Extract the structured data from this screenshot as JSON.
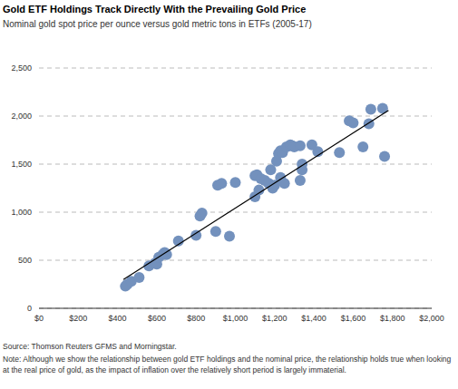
{
  "chart_data": {
    "type": "scatter",
    "title": "Gold ETF Holdings Track Directly With the Prevailing Gold Price",
    "subtitle": "Nominal gold spot price per ounce versus gold metric tons in ETFs (2005-17)",
    "source": "Source: Thomson Reuters GFMS and Morningstar.",
    "note": "Note: Although we show the relationship between gold ETF holdings and the nominal price, the relationship holds true when looking at the real price of gold, as the impact of inflation over the relatively short period is largely immaterial.",
    "x": [
      440,
      450,
      470,
      510,
      560,
      590,
      600,
      610,
      630,
      640,
      650,
      710,
      800,
      820,
      830,
      900,
      910,
      930,
      970,
      1000,
      1100,
      1100,
      1110,
      1120,
      1130,
      1150,
      1170,
      1180,
      1190,
      1200,
      1210,
      1220,
      1230,
      1230,
      1240,
      1250,
      1260,
      1280,
      1290,
      1300,
      1330,
      1330,
      1340,
      1340,
      1390,
      1420,
      1530,
      1580,
      1600,
      1650,
      1680,
      1690,
      1750,
      1760
    ],
    "values": [
      230,
      250,
      280,
      320,
      440,
      470,
      460,
      530,
      560,
      580,
      560,
      700,
      760,
      960,
      990,
      800,
      1280,
      1300,
      750,
      1310,
      1160,
      1380,
      1390,
      1230,
      1350,
      1330,
      1300,
      1440,
      1250,
      1280,
      1530,
      1610,
      1640,
      1360,
      1620,
      1300,
      1680,
      1700,
      1690,
      1680,
      1330,
      1690,
      1440,
      1500,
      1700,
      1630,
      1620,
      1950,
      1930,
      1680,
      1920,
      2070,
      2080,
      1580
    ],
    "color": "#7391bd",
    "marker": "circle",
    "trend_line": {
      "x": [
        430,
        1780
      ],
      "values": [
        300,
        2060
      ],
      "color": "#000000"
    },
    "xlim": [
      0,
      2000
    ],
    "xticks": [
      {
        "value": 0,
        "label": "$0"
      },
      {
        "value": 200,
        "label": "$200"
      },
      {
        "value": 400,
        "label": "$400"
      },
      {
        "value": 600,
        "label": "$600"
      },
      {
        "value": 800,
        "label": "$800"
      },
      {
        "value": 1000,
        "label": "$1,000"
      },
      {
        "value": 1200,
        "label": "$1,200"
      },
      {
        "value": 1400,
        "label": "$1,400"
      },
      {
        "value": 1600,
        "label": "$1,600"
      },
      {
        "value": 1800,
        "label": "$1,800"
      },
      {
        "value": 2000,
        "label": "$2,000"
      }
    ],
    "ylim": [
      0,
      2500
    ],
    "yticks": [
      0,
      500,
      {
        "value": 1000,
        "label": "1,000"
      },
      {
        "value": 1500,
        "label": "1,500"
      },
      {
        "value": 2000,
        "label": "2,000"
      },
      {
        "value": 2500,
        "label": "2,500"
      }
    ],
    "grid": true
  }
}
